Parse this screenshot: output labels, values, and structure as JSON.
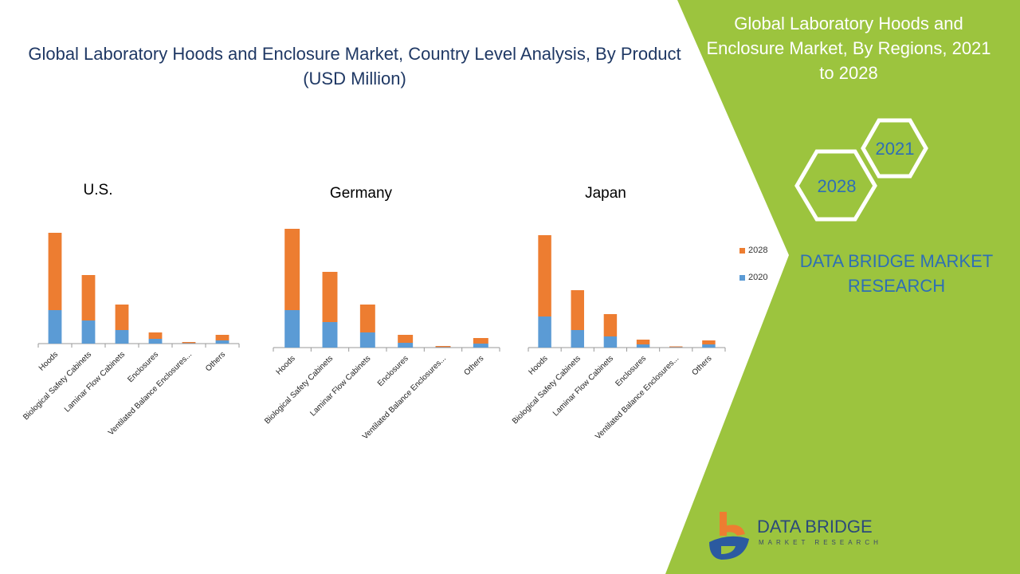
{
  "title": "Global Laboratory Hoods and Enclosure Market, Country Level Analysis, By Product (USD Million)",
  "right_panel": {
    "title": "Global Laboratory Hoods and Enclosure Market, By Regions, 2021 to 2028",
    "hex_a": "2021",
    "hex_b": "2028",
    "brand": "DATA BRIDGE MARKET RESEARCH"
  },
  "logo": {
    "name": "DATA BRIDGE",
    "sub": "MARKET RESEARCH"
  },
  "colors": {
    "s2020": "#5b9bd5",
    "s2028": "#ed7d31",
    "green": "#9cc43e"
  },
  "chart_data": [
    {
      "type": "bar",
      "stacked": true,
      "title": "U.S.",
      "categories": [
        "Hoods",
        "Biological Safety Cabinets",
        "Laminar Flow Cabinets",
        "Enclosures",
        "Ventilated Balance Enclosures...",
        "Others"
      ],
      "series": [
        {
          "name": "2020",
          "values": [
            42,
            29,
            17,
            6,
            0.5,
            4
          ]
        },
        {
          "name": "2028",
          "values": [
            97,
            57,
            32,
            8,
            1.5,
            7
          ]
        }
      ],
      "legend": [
        "2028",
        "2020"
      ],
      "legend_position": "right"
    },
    {
      "type": "bar",
      "stacked": true,
      "title": "Germany",
      "categories": [
        "Hoods",
        "Biological Safety Cabinets",
        "Laminar Flow Cabinets",
        "Enclosures",
        "Ventilated Balance Enclosures...",
        "Others"
      ],
      "series": [
        {
          "name": "2020",
          "values": [
            47,
            32,
            19,
            6,
            0.5,
            5
          ]
        },
        {
          "name": "2028",
          "values": [
            102,
            63,
            35,
            10,
            1.5,
            7
          ]
        }
      ]
    },
    {
      "type": "bar",
      "stacked": true,
      "title": "Japan",
      "categories": [
        "Hoods",
        "Biological Safety Cabinets",
        "Laminar Flow Cabinets",
        "Enclosures",
        "Ventilated Balance Enclosures...",
        "Others"
      ],
      "series": [
        {
          "name": "2020",
          "values": [
            39,
            22,
            14,
            4,
            0.5,
            4
          ]
        },
        {
          "name": "2028",
          "values": [
            102,
            50,
            28,
            6,
            1,
            5
          ]
        }
      ]
    }
  ]
}
